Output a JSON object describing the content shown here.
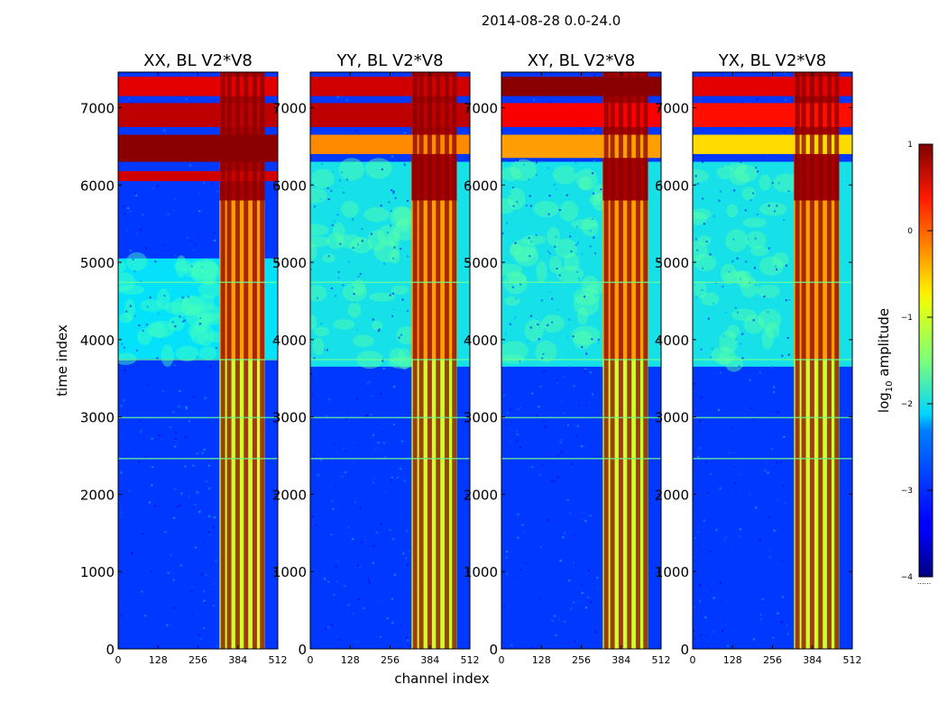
{
  "figure": {
    "suptitle": "2014-08-28 0.0-24.0",
    "xlabel": "channel index",
    "ylabel": "time index"
  },
  "colorbar": {
    "label_prefix": "log",
    "label_sub": "10",
    "label_suffix": " amplitude",
    "min": -4,
    "max": 1,
    "ticks": [
      1,
      0,
      -1,
      -2,
      -3,
      -4
    ],
    "tick_labels": [
      "1",
      "0",
      "−1",
      "−2",
      "−3",
      "−4"
    ],
    "colormap": "jet"
  },
  "chart_data": [
    {
      "type": "heatmap",
      "title": "XX, BL V2*V8",
      "xlim": [
        0,
        512
      ],
      "ylim": [
        0,
        7460
      ],
      "xticks": [
        0,
        128,
        256,
        384,
        512
      ],
      "xtick_labels": [
        "0",
        "128",
        "256",
        "384",
        "512"
      ],
      "yticks": [
        0,
        1000,
        2000,
        3000,
        4000,
        5000,
        6000,
        7000
      ],
      "ytick_labels": [
        "0",
        "1000",
        "2000",
        "3000",
        "4000",
        "5000",
        "6000",
        "7000"
      ],
      "background_level": -3.1,
      "high_band_channels": [
        325,
        470
      ],
      "bright_columns": [
        336,
        356,
        383,
        410,
        438,
        462
      ],
      "high_rows": [
        [
          7150,
          7400,
          0.5
        ],
        [
          6750,
          7060,
          0.7
        ],
        [
          6300,
          6650,
          0.95
        ],
        [
          6050,
          6180,
          0.6
        ]
      ],
      "pattern_rows": [
        [
          3750,
          5050,
          -2.1
        ]
      ]
    },
    {
      "type": "heatmap",
      "title": "YY, BL V2*V8",
      "xlim": [
        0,
        512
      ],
      "ylim": [
        0,
        7460
      ],
      "xticks": [
        0,
        128,
        256,
        384,
        512
      ],
      "xtick_labels": [
        "0",
        "128",
        "256",
        "384",
        "512"
      ],
      "yticks": [
        0,
        1000,
        2000,
        3000,
        4000,
        5000,
        6000,
        7000
      ],
      "ytick_labels": [
        "0",
        "1000",
        "2000",
        "3000",
        "4000",
        "5000",
        "6000",
        "7000"
      ],
      "background_level": -3.1,
      "high_band_channels": [
        325,
        470
      ],
      "bright_columns": [
        336,
        356,
        383,
        410,
        438,
        462
      ],
      "high_rows": [
        [
          7150,
          7400,
          0.6
        ],
        [
          6750,
          7060,
          0.7
        ],
        [
          6400,
          6650,
          -0.3
        ]
      ],
      "pattern_rows": [
        [
          3650,
          6300,
          -2.0
        ]
      ]
    },
    {
      "type": "heatmap",
      "title": "XY, BL V2*V8",
      "xlim": [
        0,
        512
      ],
      "ylim": [
        0,
        7460
      ],
      "xticks": [
        0,
        128,
        256,
        384,
        512
      ],
      "xtick_labels": [
        "0",
        "128",
        "256",
        "384",
        "512"
      ],
      "yticks": [
        0,
        1000,
        2000,
        3000,
        4000,
        5000,
        6000,
        7000
      ],
      "ytick_labels": [
        "0",
        "1000",
        "2000",
        "3000",
        "4000",
        "5000",
        "6000",
        "7000"
      ],
      "background_level": -3.1,
      "high_band_channels": [
        325,
        470
      ],
      "bright_columns": [
        336,
        356,
        383,
        410,
        438,
        462
      ],
      "high_rows": [
        [
          7150,
          7400,
          0.95
        ],
        [
          6750,
          7060,
          0.4
        ],
        [
          6350,
          6650,
          -0.4
        ]
      ],
      "pattern_rows": [
        [
          3650,
          6300,
          -2.0
        ]
      ]
    },
    {
      "type": "heatmap",
      "title": "YX, BL V2*V8",
      "xlim": [
        0,
        512
      ],
      "ylim": [
        0,
        7460
      ],
      "xticks": [
        0,
        128,
        256,
        384,
        512
      ],
      "xtick_labels": [
        "0",
        "128",
        "256",
        "384",
        "512"
      ],
      "yticks": [
        0,
        1000,
        2000,
        3000,
        4000,
        5000,
        6000,
        7000
      ],
      "ytick_labels": [
        "0",
        "1000",
        "2000",
        "3000",
        "4000",
        "5000",
        "6000",
        "7000"
      ],
      "background_level": -3.1,
      "high_band_channels": [
        325,
        470
      ],
      "bright_columns": [
        336,
        356,
        383,
        410,
        438,
        462
      ],
      "high_rows": [
        [
          7150,
          7400,
          0.5
        ],
        [
          6750,
          7060,
          0.3
        ],
        [
          6400,
          6650,
          -0.7
        ]
      ],
      "pattern_rows": [
        [
          3650,
          6300,
          -2.0
        ]
      ]
    }
  ]
}
